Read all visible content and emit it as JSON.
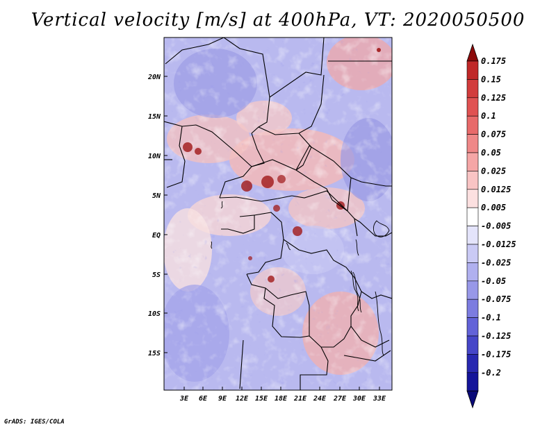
{
  "title": "Vertical velocity [m/s] at 400hPa, VT: 2020050500",
  "credit": "GrADS: IGES/COLA",
  "map": {
    "lat_ticks": [
      "20N",
      "15N",
      "10N",
      "5N",
      "EQ",
      "5S",
      "10S",
      "15S"
    ],
    "lon_ticks": [
      "3E",
      "6E",
      "9E",
      "12E",
      "15E",
      "18E",
      "21E",
      "24E",
      "27E",
      "30E",
      "33E"
    ]
  },
  "colorbar": {
    "labels": [
      "0.175",
      "0.15",
      "0.125",
      "0.1",
      "0.075",
      "0.05",
      "0.025",
      "0.0125",
      "0.005",
      "-0.005",
      "-0.0125",
      "-0.025",
      "-0.05",
      "-0.075",
      "-0.1",
      "-0.125",
      "-0.175",
      "-0.2"
    ],
    "colors": [
      "#a81010",
      "#c02828",
      "#d23c3c",
      "#e05252",
      "#e86a6a",
      "#ef8888",
      "#f5a6a6",
      "#f9c4c4",
      "#fce0e0",
      "#ffffff",
      "#e4e4fb",
      "#cacaf5",
      "#b0b0ef",
      "#9898e8",
      "#7c7ce0",
      "#6262d8",
      "#4646c8",
      "#2828b0",
      "#14149a"
    ],
    "top_color": "#8c0a0a",
    "bottom_color": "#0a0a78"
  }
}
